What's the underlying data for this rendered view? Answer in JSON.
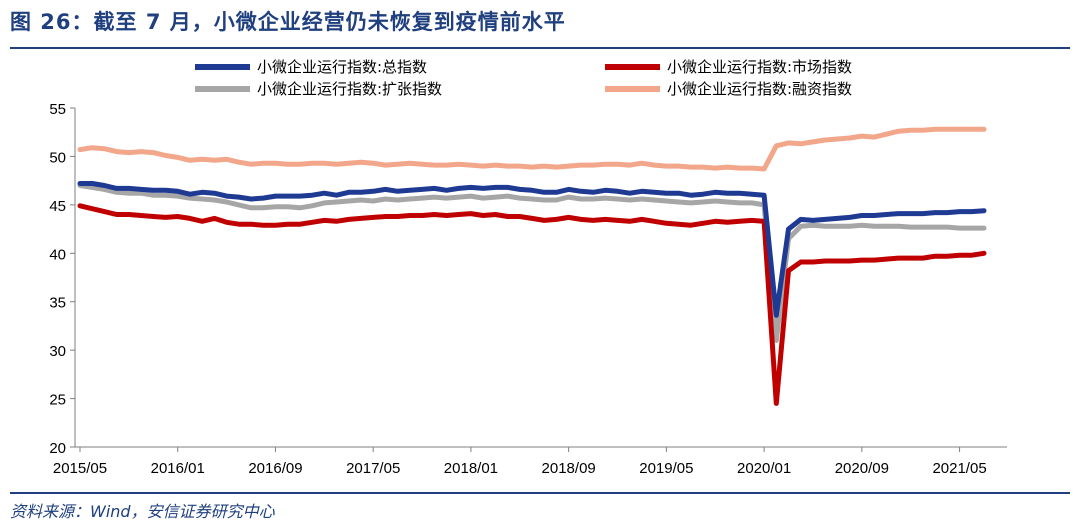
{
  "figure": {
    "title": "图 26：截至 7 月，小微企业经营仍未恢复到疫情前水平",
    "source": "资料来源：Wind，安信证券研究中心"
  },
  "chart_data": {
    "type": "line",
    "title": "",
    "xlabel": "",
    "ylabel": "",
    "ylim": [
      20,
      55
    ],
    "yticks": [
      20,
      25,
      30,
      35,
      40,
      45,
      50,
      55
    ],
    "xticks": [
      "2015/05",
      "2016/01",
      "2016/09",
      "2017/05",
      "2018/01",
      "2018/09",
      "2019/05",
      "2020/01",
      "2020/09",
      "2021/05"
    ],
    "x": [
      "2015/05",
      "2015/06",
      "2015/07",
      "2015/08",
      "2015/09",
      "2015/10",
      "2015/11",
      "2015/12",
      "2016/01",
      "2016/02",
      "2016/03",
      "2016/04",
      "2016/05",
      "2016/06",
      "2016/07",
      "2016/08",
      "2016/09",
      "2016/10",
      "2016/11",
      "2016/12",
      "2017/01",
      "2017/02",
      "2017/03",
      "2017/04",
      "2017/05",
      "2017/06",
      "2017/07",
      "2017/08",
      "2017/09",
      "2017/10",
      "2017/11",
      "2017/12",
      "2018/01",
      "2018/02",
      "2018/03",
      "2018/04",
      "2018/05",
      "2018/06",
      "2018/07",
      "2018/08",
      "2018/09",
      "2018/10",
      "2018/11",
      "2018/12",
      "2019/01",
      "2019/02",
      "2019/03",
      "2019/04",
      "2019/05",
      "2019/06",
      "2019/07",
      "2019/08",
      "2019/09",
      "2019/10",
      "2019/11",
      "2019/12",
      "2020/01",
      "2020/02",
      "2020/03",
      "2020/04",
      "2020/05",
      "2020/06",
      "2020/07",
      "2020/08",
      "2020/09",
      "2020/10",
      "2020/11",
      "2020/12",
      "2021/01",
      "2021/02",
      "2021/03",
      "2021/04",
      "2021/05",
      "2021/06",
      "2021/07"
    ],
    "legend_position": "top",
    "grid": false,
    "series": [
      {
        "name": "小微企业运行指数:总指数",
        "color": "#1f3a93",
        "values": [
          47.2,
          47.2,
          47.0,
          46.7,
          46.7,
          46.6,
          46.5,
          46.5,
          46.4,
          46.1,
          46.3,
          46.2,
          45.9,
          45.8,
          45.6,
          45.7,
          45.9,
          45.9,
          45.9,
          46.0,
          46.2,
          46.0,
          46.3,
          46.3,
          46.4,
          46.6,
          46.4,
          46.5,
          46.6,
          46.7,
          46.5,
          46.7,
          46.8,
          46.7,
          46.8,
          46.8,
          46.6,
          46.5,
          46.3,
          46.3,
          46.6,
          46.4,
          46.3,
          46.5,
          46.4,
          46.2,
          46.4,
          46.3,
          46.2,
          46.2,
          46.0,
          46.1,
          46.3,
          46.2,
          46.2,
          46.1,
          46.0,
          33.6,
          42.5,
          43.5,
          43.4,
          43.5,
          43.6,
          43.7,
          43.9,
          43.9,
          44.0,
          44.1,
          44.1,
          44.1,
          44.2,
          44.2,
          44.3,
          44.3,
          44.4
        ]
      },
      {
        "name": "小微企业运行指数:市场指数",
        "color": "#c00000",
        "values": [
          44.9,
          44.6,
          44.3,
          44.0,
          44.0,
          43.9,
          43.8,
          43.7,
          43.8,
          43.6,
          43.3,
          43.6,
          43.2,
          43.0,
          43.0,
          42.9,
          42.9,
          43.0,
          43.0,
          43.2,
          43.4,
          43.3,
          43.5,
          43.6,
          43.7,
          43.8,
          43.8,
          43.9,
          43.9,
          44.0,
          43.9,
          44.0,
          44.1,
          43.9,
          44.0,
          43.8,
          43.8,
          43.6,
          43.4,
          43.5,
          43.7,
          43.5,
          43.4,
          43.5,
          43.4,
          43.3,
          43.5,
          43.3,
          43.1,
          43.0,
          42.9,
          43.1,
          43.3,
          43.2,
          43.3,
          43.4,
          43.3,
          24.5,
          38.2,
          39.1,
          39.1,
          39.2,
          39.2,
          39.2,
          39.3,
          39.3,
          39.4,
          39.5,
          39.5,
          39.5,
          39.7,
          39.7,
          39.8,
          39.8,
          40.0
        ]
      },
      {
        "name": "小微企业运行指数:扩张指数",
        "color": "#a6a6a6",
        "values": [
          47.0,
          46.8,
          46.6,
          46.3,
          46.2,
          46.2,
          46.0,
          46.0,
          45.9,
          45.7,
          45.6,
          45.5,
          45.3,
          45.0,
          44.7,
          44.7,
          44.8,
          44.8,
          44.7,
          44.9,
          45.2,
          45.3,
          45.4,
          45.5,
          45.4,
          45.6,
          45.5,
          45.6,
          45.7,
          45.8,
          45.7,
          45.8,
          45.9,
          45.7,
          45.8,
          45.9,
          45.7,
          45.6,
          45.5,
          45.5,
          45.8,
          45.6,
          45.6,
          45.7,
          45.6,
          45.5,
          45.6,
          45.5,
          45.4,
          45.3,
          45.2,
          45.3,
          45.4,
          45.3,
          45.2,
          45.2,
          45.0,
          31.0,
          41.5,
          42.8,
          42.9,
          42.8,
          42.8,
          42.8,
          42.9,
          42.8,
          42.8,
          42.8,
          42.7,
          42.7,
          42.7,
          42.7,
          42.6,
          42.6,
          42.6
        ]
      },
      {
        "name": "小微企业运行指数:融资指数",
        "color": "#f2a68a",
        "values": [
          50.7,
          50.9,
          50.8,
          50.5,
          50.4,
          50.5,
          50.4,
          50.1,
          49.9,
          49.6,
          49.7,
          49.6,
          49.7,
          49.4,
          49.2,
          49.3,
          49.3,
          49.2,
          49.2,
          49.3,
          49.3,
          49.2,
          49.3,
          49.4,
          49.3,
          49.1,
          49.2,
          49.3,
          49.2,
          49.1,
          49.1,
          49.2,
          49.1,
          49.0,
          49.1,
          49.0,
          49.0,
          48.9,
          49.0,
          48.9,
          49.0,
          49.1,
          49.1,
          49.2,
          49.2,
          49.1,
          49.3,
          49.1,
          49.0,
          49.0,
          48.9,
          48.9,
          48.8,
          48.9,
          48.8,
          48.8,
          48.7,
          51.1,
          51.4,
          51.3,
          51.5,
          51.7,
          51.8,
          51.9,
          52.1,
          52.0,
          52.3,
          52.6,
          52.7,
          52.7,
          52.8,
          52.8,
          52.8,
          52.8,
          52.8
        ]
      }
    ]
  }
}
